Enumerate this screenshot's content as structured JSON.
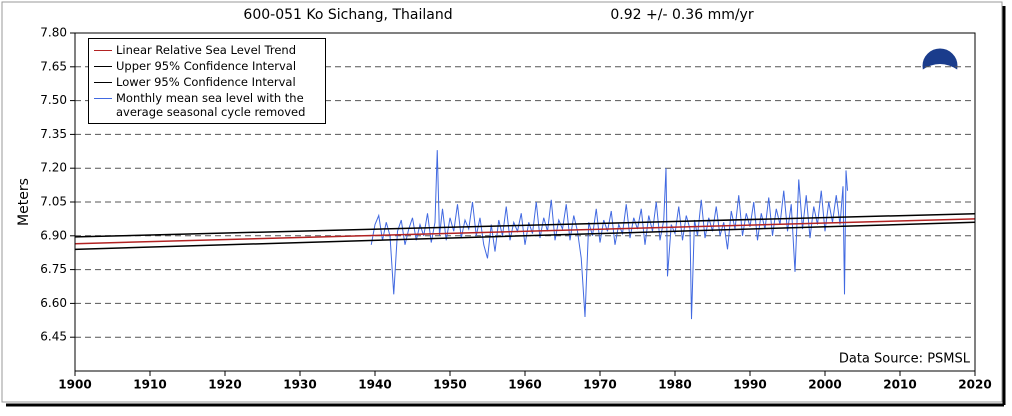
{
  "chart_data": {
    "type": "line",
    "title": "600-051 Ko Sichang, Thailand",
    "subtitle": "0.92 +/-  0.36 mm/yr",
    "y_label": "Meters",
    "annotation": "Data Source: PSMSL",
    "xlim": [
      1900,
      2020
    ],
    "xticks": [
      1900,
      1910,
      1920,
      1930,
      1940,
      1950,
      1960,
      1970,
      1980,
      1990,
      2000,
      2010,
      2020
    ],
    "ylim": [
      6.3,
      7.8
    ],
    "yticks": [
      6.45,
      {
        "value": 6.6,
        "label": "6.60"
      },
      6.75,
      {
        "value": 6.9,
        "label": "6.90"
      },
      7.05,
      {
        "value": 7.2,
        "label": "7.20"
      },
      7.35,
      {
        "value": 7.5,
        "label": "7.50"
      },
      7.65,
      {
        "value": 7.8,
        "label": "7.80"
      }
    ],
    "grid": true,
    "legend": "top-left",
    "series": [
      {
        "name": "Linear Relative Sea Level Trend",
        "color": "#b22222",
        "x": [
          1900,
          2020
        ],
        "values": [
          6.865,
          6.975
        ]
      },
      {
        "name": "Upper 95% Confidence Interval",
        "color": "#000000",
        "x": [
          1900,
          2020
        ],
        "values": [
          6.895,
          6.998
        ]
      },
      {
        "name": "Lower 95% Confidence Interval",
        "color": "#000000",
        "x": [
          1900,
          2020
        ],
        "values": [
          6.84,
          6.96
        ]
      },
      {
        "name": "Monthly mean sea level with the average seasonal cycle removed",
        "color": "#4169e1",
        "x": [
          1939.5,
          1940,
          1940.5,
          1941,
          1941.5,
          1942,
          1942.5,
          1943,
          1943.5,
          1944,
          1944.5,
          1945,
          1945.5,
          1946,
          1946.5,
          1947,
          1947.5,
          1948,
          1948.3,
          1948.6,
          1949,
          1949.5,
          1950,
          1950.5,
          1951,
          1951.5,
          1952,
          1952.5,
          1953,
          1953.5,
          1954,
          1954.5,
          1955,
          1955.5,
          1956,
          1956.5,
          1957,
          1957.5,
          1958,
          1958.5,
          1959,
          1959.5,
          1960,
          1960.5,
          1961,
          1961.5,
          1962,
          1962.5,
          1963,
          1963.5,
          1964,
          1964.5,
          1965,
          1965.5,
          1966,
          1966.5,
          1967,
          1967.5,
          1968,
          1968.5,
          1969,
          1969.5,
          1970,
          1970.5,
          1971,
          1971.5,
          1972,
          1972.5,
          1973,
          1973.5,
          1974,
          1974.5,
          1975,
          1975.5,
          1976,
          1976.5,
          1977,
          1977.5,
          1978,
          1978.5,
          1978.8,
          1979,
          1979.5,
          1980,
          1980.5,
          1981,
          1981.5,
          1982,
          1982.2,
          1982.6,
          1983,
          1983.5,
          1984,
          1984.5,
          1985,
          1985.5,
          1986,
          1986.5,
          1987,
          1987.5,
          1988,
          1988.5,
          1989,
          1989.5,
          1990,
          1990.5,
          1991,
          1991.5,
          1992,
          1992.5,
          1993,
          1993.5,
          1994,
          1994.5,
          1995,
          1995.5,
          1996,
          1996.5,
          1997,
          1997.5,
          1998,
          1998.5,
          1999,
          1999.5,
          2000,
          2000.5,
          2001,
          2001.5,
          2002,
          2002.4,
          2002.6,
          2002.8,
          2003
        ],
        "values": [
          6.86,
          6.95,
          6.99,
          6.88,
          6.96,
          6.9,
          6.64,
          6.92,
          6.97,
          6.86,
          6.93,
          6.98,
          6.88,
          6.95,
          6.9,
          7.0,
          6.87,
          6.96,
          7.28,
          6.9,
          7.02,
          6.88,
          6.98,
          6.92,
          7.04,
          6.89,
          6.97,
          6.93,
          7.05,
          6.9,
          6.98,
          6.86,
          6.8,
          6.95,
          6.83,
          6.97,
          6.9,
          7.03,
          6.88,
          6.96,
          6.92,
          7.0,
          6.86,
          6.96,
          6.91,
          7.05,
          6.89,
          6.98,
          6.92,
          7.06,
          6.88,
          6.97,
          6.93,
          7.04,
          6.88,
          6.99,
          6.92,
          6.8,
          6.54,
          6.96,
          6.9,
          7.02,
          6.87,
          6.97,
          6.92,
          7.01,
          6.86,
          6.95,
          6.91,
          7.04,
          6.89,
          6.98,
          6.93,
          7.02,
          6.86,
          6.99,
          6.92,
          7.05,
          6.88,
          6.97,
          7.2,
          6.72,
          6.95,
          6.91,
          7.03,
          6.88,
          6.99,
          6.93,
          6.53,
          6.97,
          6.9,
          7.06,
          6.89,
          6.98,
          6.92,
          7.03,
          6.9,
          6.96,
          6.84,
          7.01,
          6.93,
          7.08,
          6.9,
          7.0,
          6.94,
          7.05,
          6.88,
          7.0,
          6.93,
          7.07,
          6.9,
          7.02,
          6.95,
          7.1,
          6.92,
          7.04,
          6.74,
          7.15,
          6.93,
          7.08,
          6.89,
          7.03,
          6.95,
          7.1,
          6.92,
          7.05,
          6.96,
          7.08,
          6.95,
          7.12,
          6.64,
          7.19,
          7.1
        ]
      }
    ]
  }
}
